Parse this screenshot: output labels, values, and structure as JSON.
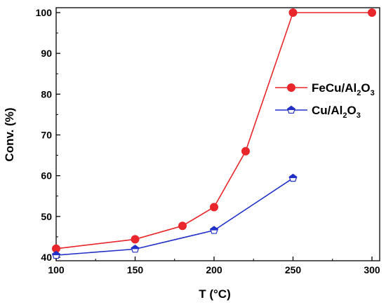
{
  "chart_data": {
    "type": "line",
    "title": "",
    "xlabel": "T (°C)",
    "ylabel": "Conv. (%)",
    "xlim": [
      100,
      300
    ],
    "ylim": [
      40,
      100
    ],
    "xticks": [
      100,
      150,
      200,
      250,
      300
    ],
    "yticks": [
      40,
      50,
      60,
      70,
      80,
      90,
      100
    ],
    "grid": false,
    "legend_position": "right",
    "series": [
      {
        "name": "FeCu/Al2O3",
        "name_parts": [
          "FeCu/Al",
          "2",
          "O",
          "3"
        ],
        "color": "#e8262b",
        "marker": "circle-filled",
        "x": [
          100,
          150,
          180,
          200,
          220,
          250,
          300
        ],
        "y": [
          42.1,
          44.4,
          47.7,
          52.3,
          66.0,
          100.0,
          100.0
        ]
      },
      {
        "name": "Cu/Al2O3",
        "name_parts": [
          "Cu/Al",
          "2",
          "O",
          "3"
        ],
        "color": "#2230c8",
        "marker": "pentagon-half-filled",
        "x": [
          100,
          150,
          200,
          250
        ],
        "y": [
          40.5,
          42.0,
          46.6,
          59.4
        ]
      }
    ]
  }
}
